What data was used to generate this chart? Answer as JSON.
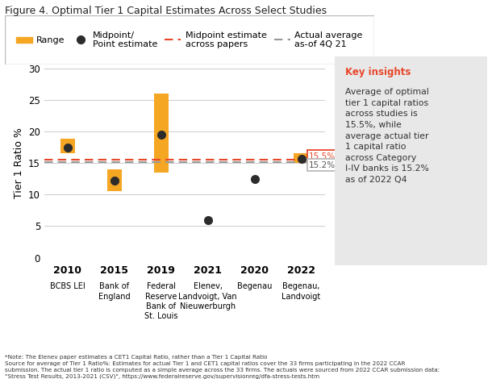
{
  "categories": [
    1,
    2,
    3,
    4,
    5,
    6
  ],
  "x_labels_year": [
    "2010",
    "2015",
    "2019",
    "2021",
    "2020",
    "2022"
  ],
  "x_labels_name": [
    "BCBS LEI",
    "Bank of\nEngland",
    "Federal\nReserve\nBank of\nSt. Louis",
    "Elenev,\nLandvoigt, Van\nNieuwerburgh",
    "Begenau",
    "Begenau,\nLandvoigt"
  ],
  "bar_low": [
    16.5,
    10.5,
    13.5,
    null,
    null,
    15.0
  ],
  "bar_high": [
    18.8,
    14.0,
    26.0,
    null,
    null,
    16.5
  ],
  "midpoints": [
    17.5,
    12.2,
    19.5,
    6.0,
    12.5,
    15.7
  ],
  "midpoint_line": 15.5,
  "actual_line": 15.2,
  "bar_color": "#F5A623",
  "midpoint_dot_color": "#2C2C2C",
  "midpoint_line_color": "#E8472A",
  "actual_line_color": "#999999",
  "ylabel": "Tier 1 Ratio %",
  "ylim": [
    0,
    30
  ],
  "yticks": [
    0,
    5,
    10,
    15,
    20,
    25,
    30
  ],
  "annotation_15_5": "15.5%",
  "annotation_15_2": "15.2%",
  "key_insights_title": "Key insights",
  "key_insights_text": "Average of optimal\ntier 1 capital ratios\nacross studies is\n15.5%, while\naverage actual tier\n1 capital ratio\nacross Category\nI-IV banks is 15.2%\nas of 2022 Q4",
  "footnote": "*Note: The Elenev paper estimates a CET1 Capital Ratio, rather than a Tier 1 Capital Ratio\nSource for average of Tier 1 Ratio%: Estimates for actual Tier 1 and CET1 capital ratios cover the 33 firms participating in the 2022 CCAR\nsubmission. The actual tier 1 ratio is computed as a simple average across the 33 firms. The actuals were sourced from 2022 CCAR submission data:\n\"Stress Test Results, 2013-2021 (CSV)\", https://www.federalreserve.gov/supervisionreg/dfa-stress-tests.htm",
  "title": "Figure 4. Optimal Tier 1 Capital Estimates Across Select Studies"
}
